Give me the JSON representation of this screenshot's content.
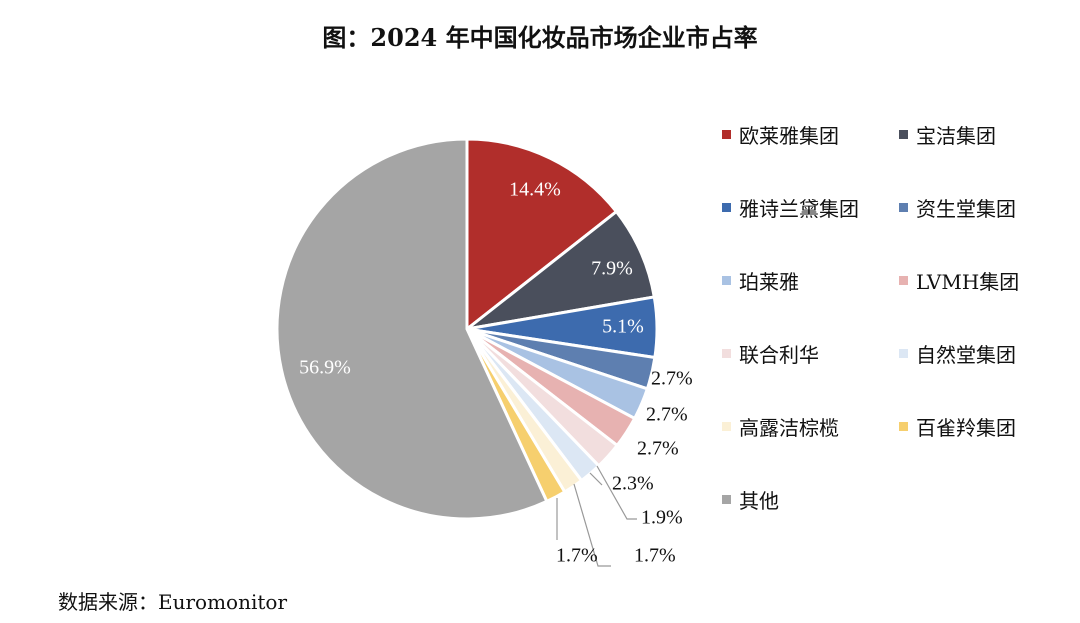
{
  "title": "图：2024 年中国化妆品市场企业市占率",
  "source_note": "数据来源：Euromonitor",
  "chart_data": {
    "type": "pie",
    "title": "图：2024 年中国化妆品市场企业市占率",
    "slices": [
      {
        "name": "欧莱雅集团",
        "value": 14.4,
        "label": "14.4%",
        "color": "#B12E2B"
      },
      {
        "name": "宝洁集团",
        "value": 7.9,
        "label": "7.9%",
        "color": "#4A4F5C"
      },
      {
        "name": "雅诗兰黛集团",
        "value": 5.1,
        "label": "5.1%",
        "color": "#3D6BAE"
      },
      {
        "name": "资生堂集团",
        "value": 2.7,
        "label": "2.7%",
        "color": "#5E7FB0"
      },
      {
        "name": "珀莱雅",
        "value": 2.7,
        "label": "2.7%",
        "color": "#A9C2E3"
      },
      {
        "name": "LVMH集团",
        "value": 2.7,
        "label": "2.7%",
        "color": "#E7B2B1"
      },
      {
        "name": "联合利华",
        "value": 2.3,
        "label": "2.3%",
        "color": "#F2DEDE"
      },
      {
        "name": "自然堂集团",
        "value": 1.9,
        "label": "1.9%",
        "color": "#DCE7F4"
      },
      {
        "name": "高露洁棕榄",
        "value": 1.7,
        "label": "1.7%",
        "color": "#FBF0D6"
      },
      {
        "name": "百雀羚集团",
        "value": 1.7,
        "label": "1.7%",
        "color": "#F6CF6E"
      },
      {
        "name": "其他",
        "value": 56.9,
        "label": "56.9%",
        "color": "#A5A5A5"
      }
    ],
    "legend_position": "right"
  }
}
